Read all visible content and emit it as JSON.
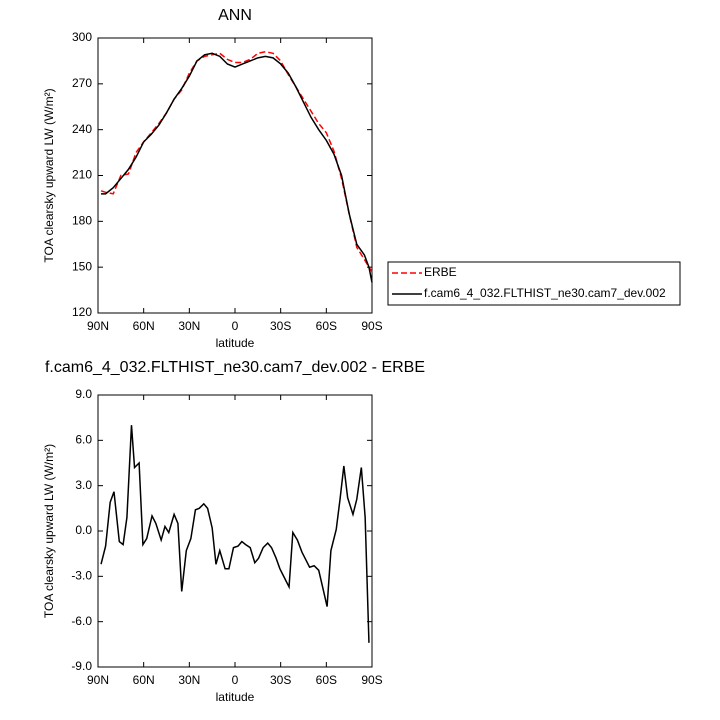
{
  "chart_data": [
    {
      "type": "line",
      "title": "ANN",
      "xlabel": "latitude",
      "ylabel": "TOA clearsky upward LW (W/m²)",
      "x": [
        88,
        85,
        80,
        75,
        70,
        65,
        60,
        55,
        50,
        45,
        40,
        35,
        30,
        25,
        20,
        15,
        10,
        5,
        0,
        -5,
        -10,
        -15,
        -20,
        -25,
        -30,
        -35,
        -40,
        -45,
        -50,
        -55,
        -60,
        -65,
        -70,
        -75,
        -80,
        -85,
        -88,
        -90
      ],
      "series": [
        {
          "name": "ERBE",
          "color": "#ff0000",
          "style": "dashed",
          "values": [
            200,
            199,
            198,
            210,
            211,
            225,
            232,
            238,
            244,
            251,
            260,
            266,
            277,
            285,
            288,
            289,
            290,
            286,
            284,
            284,
            286,
            290,
            291,
            290,
            285,
            276,
            268,
            260,
            252,
            244,
            238,
            226,
            208,
            185,
            163,
            155,
            150,
            147
          ]
        },
        {
          "name": "f.cam6_4_032.FLTHIST_ne30.cam7_dev.002",
          "color": "#000000",
          "style": "solid",
          "values": [
            198,
            198,
            202,
            208,
            214,
            222,
            232,
            237,
            243,
            251,
            260,
            267,
            275,
            285,
            289,
            290,
            288,
            283,
            281,
            283,
            285,
            287,
            288,
            287,
            283,
            277,
            268,
            258,
            248,
            240,
            233,
            224,
            210,
            185,
            165,
            158,
            150,
            140
          ]
        }
      ],
      "xlim": [
        90,
        -90
      ],
      "xticks": [
        {
          "value": 90,
          "label": "90N"
        },
        {
          "value": 60,
          "label": "60N"
        },
        {
          "value": 30,
          "label": "30N"
        },
        0,
        {
          "value": -30,
          "label": "30S"
        },
        {
          "value": -60,
          "label": "60S"
        },
        {
          "value": -90,
          "label": "90S"
        }
      ],
      "ylim": [
        120,
        300
      ],
      "yticks": [
        120,
        150,
        180,
        210,
        240,
        270,
        300
      ],
      "legend": "right"
    },
    {
      "type": "line",
      "title": "f.cam6_4_032.FLTHIST_ne30.cam7_dev.002 - ERBE",
      "xlabel": "latitude",
      "ylabel": "TOA clearsky upward LW (W/m²)",
      "x": [
        88,
        85,
        82,
        79.5,
        76,
        73.5,
        71,
        68,
        66,
        63,
        60.5,
        58,
        54.5,
        52,
        48.5,
        46,
        43.5,
        40,
        37.5,
        35,
        32,
        29,
        26,
        23.5,
        20.5,
        18,
        15,
        12.5,
        10,
        6.5,
        4,
        1,
        -2,
        -4.5,
        -7,
        -10,
        -13,
        -15.5,
        -18.5,
        -21.5,
        -24,
        -27,
        -29.5,
        -33,
        -35.5,
        -38,
        -41,
        -44,
        -46.5,
        -49,
        -52,
        -55,
        -58,
        -60.5,
        -63,
        -66.5,
        -69,
        -71.5,
        -74,
        -77.5,
        -80,
        -83,
        -85.5,
        -88
      ],
      "series": [
        {
          "name": "f.cam6_4_032.FLTHIST_ne30.cam7_dev.002 - ERBE",
          "color": "#000000",
          "style": "solid",
          "values": [
            -2.2,
            -1.0,
            1.9,
            2.6,
            -0.7,
            -0.9,
            0.9,
            7.0,
            4.2,
            4.5,
            -0.9,
            -0.5,
            1.0,
            0.5,
            -0.6,
            0.3,
            -0.1,
            1.1,
            0.5,
            -4.0,
            -1.3,
            -0.5,
            1.4,
            1.5,
            1.8,
            1.5,
            0.2,
            -2.2,
            -1.3,
            -2.5,
            -2.5,
            -1.1,
            -1.0,
            -0.7,
            -0.9,
            -1.1,
            -2.1,
            -1.8,
            -1.1,
            -0.8,
            -1.1,
            -1.8,
            -2.5,
            -3.2,
            -3.7,
            -0.1,
            -0.6,
            -1.4,
            -1.9,
            -2.4,
            -2.3,
            -2.6,
            -3.9,
            -5.0,
            -1.3,
            0.1,
            2.1,
            4.3,
            2.2,
            1.1,
            2.1,
            4.2,
            0.9,
            -7.4
          ]
        }
      ],
      "xlim": [
        90,
        -90
      ],
      "xticks": [
        {
          "value": 90,
          "label": "90N"
        },
        {
          "value": 60,
          "label": "60N"
        },
        {
          "value": 30,
          "label": "30N"
        },
        0,
        {
          "value": -30,
          "label": "30S"
        },
        {
          "value": -60,
          "label": "60S"
        },
        {
          "value": -90,
          "label": "90S"
        }
      ],
      "ylim": [
        -9,
        9
      ],
      "yticks": [
        {
          "value": 9,
          "label": "9.0"
        },
        {
          "value": 6,
          "label": "6.0"
        },
        {
          "value": 3,
          "label": "3.0"
        },
        {
          "value": 0,
          "label": "0.0"
        },
        {
          "value": -3,
          "label": "-3.0"
        },
        {
          "value": -6,
          "label": "-6.0"
        },
        {
          "value": -9,
          "label": "-9.0"
        }
      ]
    }
  ]
}
